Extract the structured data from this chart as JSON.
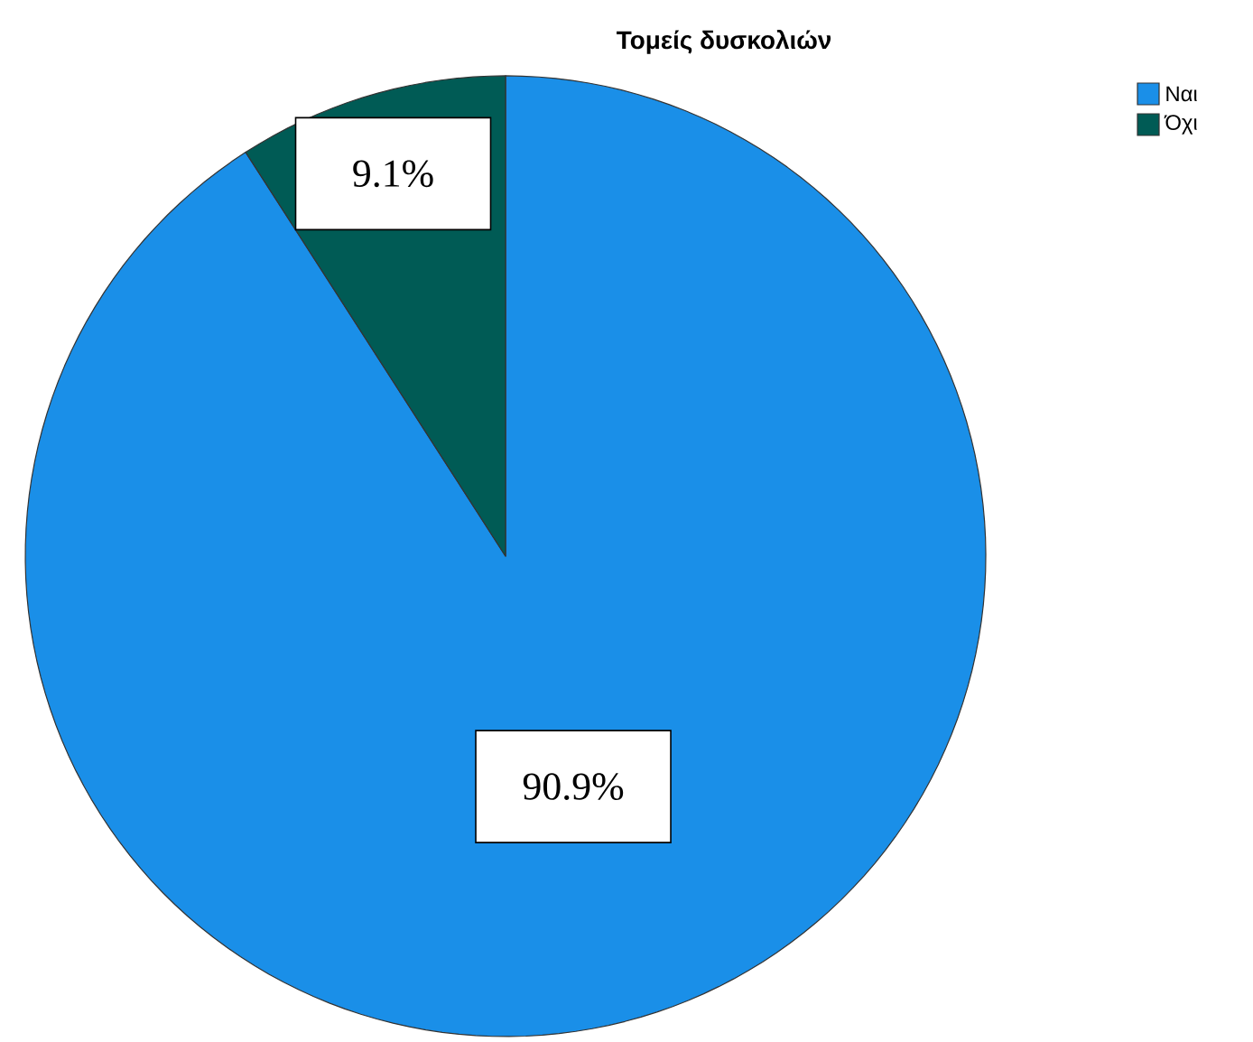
{
  "chart_data": {
    "type": "pie",
    "title": "Τομείς δυσκολιών",
    "categories": [
      "Ναι",
      "Όχι"
    ],
    "values": [
      90.9,
      9.1
    ],
    "colors": [
      "#1a8fe8",
      "#005b55"
    ],
    "value_labels": [
      "90.9%",
      "9.1%"
    ],
    "legend": "top right"
  }
}
